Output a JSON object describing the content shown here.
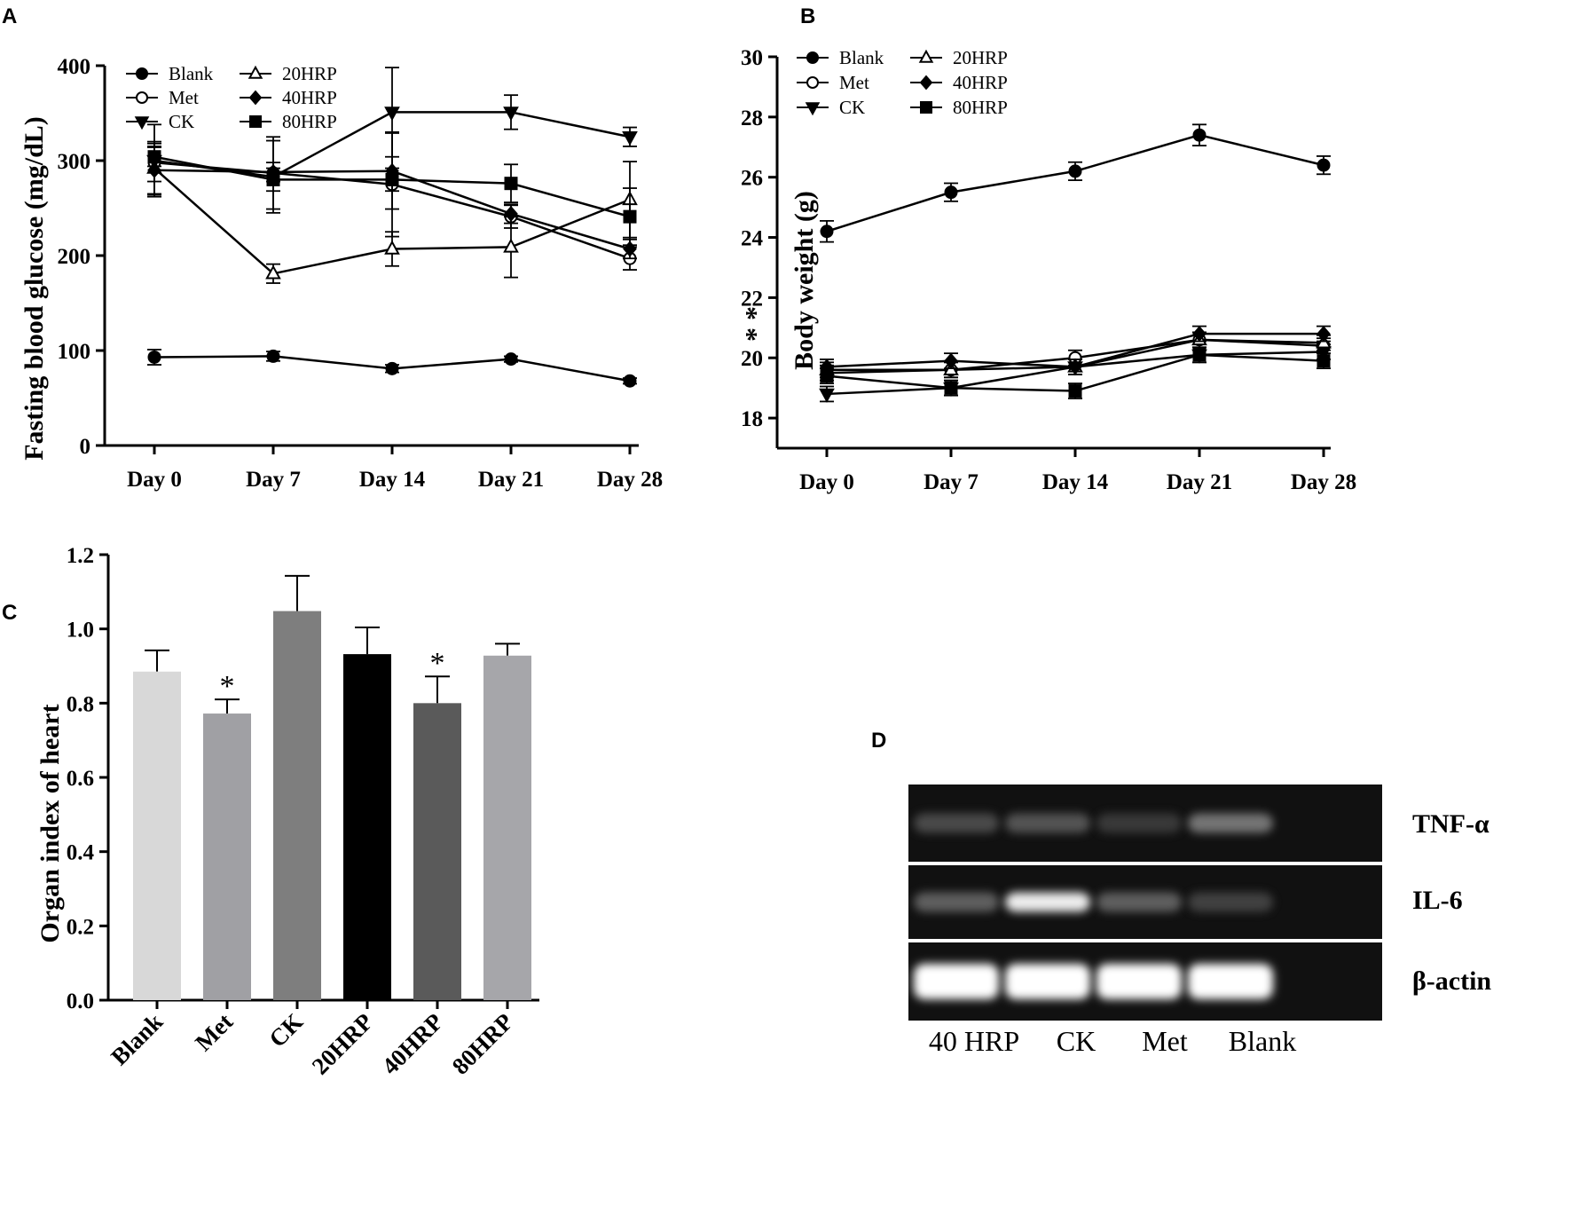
{
  "panels": {
    "A": {
      "label": "A",
      "chart_data": {
        "type": "line",
        "categories": [
          "Day 0",
          "Day 7",
          "Day 14",
          "Day 21",
          "Day 28"
        ],
        "ylabel": "Fasting blood glucose (mg/dL)",
        "ylim": [
          0,
          400
        ],
        "yticks": [
          "0",
          "100",
          "200",
          "300",
          "400"
        ],
        "legend": {
          "placement": "top-left"
        },
        "annotation": "* *",
        "series": [
          {
            "name": "Blank",
            "marker": "circle-filled",
            "values": [
              93,
              94,
              81,
              91,
              68
            ],
            "errors": [
              8,
              5,
              4,
              3,
              3
            ]
          },
          {
            "name": "Met",
            "marker": "circle-open",
            "values": [
              298,
              287,
              275,
              241,
              197
            ],
            "errors": [
              20,
              38,
              55,
              12,
              12
            ]
          },
          {
            "name": "CK",
            "marker": "triangle-down-filled",
            "values": [
              300,
              283,
              351,
              351,
              325
            ],
            "errors": [
              38,
              38,
              47,
              18,
              10
            ]
          },
          {
            "name": "20HRP",
            "marker": "triangle-open",
            "values": [
              292,
              181,
              207,
              209,
              259
            ],
            "errors": [
              28,
              10,
              18,
              32,
              40
            ]
          },
          {
            "name": "40HRP",
            "marker": "diamond-filled",
            "values": [
              290,
              288,
              289,
              244,
              207
            ],
            "errors": [
              25,
              10,
              40,
              10,
              10
            ]
          },
          {
            "name": "80HRP",
            "marker": "square-filled",
            "values": [
              304,
              280,
              280,
              276,
              241
            ],
            "errors": [
              10,
              12,
              12,
              20,
              30
            ]
          }
        ]
      }
    },
    "B": {
      "label": "B",
      "chart_data": {
        "type": "line",
        "categories": [
          "Day 0",
          "Day 7",
          "Day 14",
          "Day 21",
          "Day 28"
        ],
        "ylabel": "Body weight (g)",
        "ylim": [
          17,
          30
        ],
        "yticks": [
          "18",
          "20",
          "22",
          "24",
          "26",
          "28",
          "30"
        ],
        "legend": {
          "placement": "top-left"
        },
        "series": [
          {
            "name": "Blank",
            "marker": "circle-filled",
            "values": [
              24.2,
              25.5,
              26.2,
              27.4,
              26.4
            ],
            "errors": [
              0.35,
              0.3,
              0.3,
              0.35,
              0.3
            ]
          },
          {
            "name": "Met",
            "marker": "circle-open",
            "values": [
              19.5,
              19.6,
              20.0,
              20.6,
              20.4
            ],
            "errors": [
              0.25,
              0.25,
              0.25,
              0.25,
              0.25
            ]
          },
          {
            "name": "CK",
            "marker": "triangle-down-filled",
            "values": [
              18.8,
              19.0,
              19.7,
              20.1,
              20.2
            ],
            "errors": [
              0.25,
              0.25,
              0.25,
              0.25,
              0.25
            ]
          },
          {
            "name": "20HRP",
            "marker": "triangle-open",
            "values": [
              19.6,
              19.6,
              19.7,
              20.6,
              20.5
            ],
            "errors": [
              0.25,
              0.25,
              0.25,
              0.25,
              0.25
            ]
          },
          {
            "name": "40HRP",
            "marker": "diamond-filled",
            "values": [
              19.7,
              19.9,
              19.7,
              20.8,
              20.8
            ],
            "errors": [
              0.25,
              0.25,
              0.25,
              0.25,
              0.25
            ]
          },
          {
            "name": "80HRP",
            "marker": "square-filled",
            "values": [
              19.4,
              19.0,
              18.9,
              20.1,
              19.9
            ],
            "errors": [
              0.25,
              0.25,
              0.25,
              0.25,
              0.25
            ]
          }
        ]
      }
    },
    "C": {
      "label": "C",
      "chart_data": {
        "type": "bar",
        "categories": [
          "Blank",
          "Met",
          "CK",
          "20HRP",
          "40HRP",
          "80HRP"
        ],
        "values": [
          0.885,
          0.772,
          1.048,
          0.932,
          0.8,
          0.928
        ],
        "errors": [
          0.057,
          0.038,
          0.095,
          0.072,
          0.072,
          0.032
        ],
        "significance": [
          "",
          "*",
          "",
          "",
          "*",
          ""
        ],
        "colors": [
          "#d8d8d8",
          "#a0a0a4",
          "#7e7e7e",
          "#000000",
          "#5a5a5a",
          "#a6a6aa"
        ],
        "ylabel": "Organ index of heart",
        "ylim": [
          0,
          1.2
        ],
        "yticks": [
          "0.0",
          "0.2",
          "0.4",
          "0.6",
          "0.8",
          "1.0",
          "1.2"
        ]
      }
    },
    "D": {
      "label": "D",
      "gel": {
        "rows": [
          "TNF-α",
          "IL-6",
          "β-actin"
        ],
        "lanes": [
          "40 HRP",
          "CK",
          "Met",
          "Blank"
        ],
        "intensities": [
          [
            0.35,
            0.4,
            0.25,
            0.55
          ],
          [
            0.45,
            0.95,
            0.45,
            0.3
          ],
          [
            1.0,
            1.0,
            1.0,
            1.0
          ]
        ]
      }
    }
  }
}
